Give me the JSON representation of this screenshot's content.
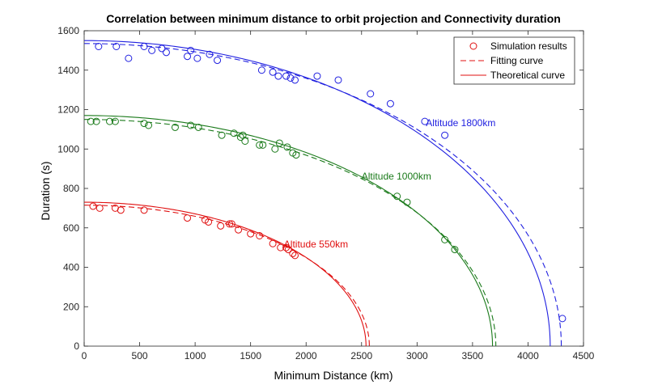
{
  "chart_data": {
    "type": "scatter",
    "title": "Correlation between minimum distance to orbit projection and Connectivity duration",
    "xlabel": "Minimum Distance (km)",
    "ylabel": "Duration (s)",
    "xlim": [
      0,
      4500
    ],
    "ylim": [
      0,
      1600
    ],
    "xticks": [
      0,
      500,
      1000,
      1500,
      2000,
      2500,
      3000,
      3500,
      4000,
      4500
    ],
    "yticks": [
      0,
      200,
      400,
      600,
      800,
      1000,
      1200,
      1400,
      1600
    ],
    "grid": false,
    "legend_position": "top-right",
    "legend": [
      {
        "label": "Simulation results",
        "style": "marker"
      },
      {
        "label": "Fitting curve",
        "style": "dashed"
      },
      {
        "label": "Theoretical curve",
        "style": "solid"
      }
    ],
    "series": [
      {
        "color": "#2020e0",
        "annotation": {
          "text": "Altitude 1800km",
          "x": 3080,
          "y": 1115
        },
        "theoretical": {
          "t0": 1550,
          "d0": 4200
        },
        "fitting": {
          "t0": 1535,
          "d0": 4300
        },
        "points": [
          [
            130,
            1520
          ],
          [
            290,
            1520
          ],
          [
            400,
            1460
          ],
          [
            540,
            1520
          ],
          [
            610,
            1500
          ],
          [
            700,
            1510
          ],
          [
            740,
            1490
          ],
          [
            930,
            1470
          ],
          [
            960,
            1500
          ],
          [
            1020,
            1460
          ],
          [
            1130,
            1480
          ],
          [
            1200,
            1450
          ],
          [
            1600,
            1400
          ],
          [
            1700,
            1390
          ],
          [
            1750,
            1370
          ],
          [
            1820,
            1370
          ],
          [
            1860,
            1360
          ],
          [
            1900,
            1350
          ],
          [
            2100,
            1370
          ],
          [
            2290,
            1350
          ],
          [
            2580,
            1280
          ],
          [
            2760,
            1230
          ],
          [
            3070,
            1140
          ],
          [
            3250,
            1070
          ],
          [
            4310,
            140
          ]
        ]
      },
      {
        "color": "#1a7a1a",
        "annotation": {
          "text": "Altitude 1000km",
          "x": 2500,
          "y": 845
        },
        "theoretical": {
          "t0": 1170,
          "d0": 3680
        },
        "fitting": {
          "t0": 1150,
          "d0": 3710
        },
        "points": [
          [
            60,
            1140
          ],
          [
            110,
            1140
          ],
          [
            230,
            1140
          ],
          [
            280,
            1140
          ],
          [
            540,
            1130
          ],
          [
            580,
            1120
          ],
          [
            820,
            1110
          ],
          [
            960,
            1120
          ],
          [
            1030,
            1110
          ],
          [
            1240,
            1070
          ],
          [
            1350,
            1080
          ],
          [
            1410,
            1060
          ],
          [
            1430,
            1070
          ],
          [
            1450,
            1040
          ],
          [
            1580,
            1020
          ],
          [
            1610,
            1020
          ],
          [
            1720,
            1000
          ],
          [
            1760,
            1030
          ],
          [
            1830,
            1010
          ],
          [
            1880,
            980
          ],
          [
            1910,
            970
          ],
          [
            2820,
            760
          ],
          [
            2910,
            730
          ],
          [
            3250,
            540
          ],
          [
            3340,
            490
          ]
        ]
      },
      {
        "color": "#e01010",
        "annotation": {
          "text": "Altitude 550km",
          "x": 1800,
          "y": 500
        },
        "theoretical": {
          "t0": 730,
          "d0": 2540
        },
        "fitting": {
          "t0": 715,
          "d0": 2570
        },
        "points": [
          [
            80,
            710
          ],
          [
            140,
            700
          ],
          [
            280,
            700
          ],
          [
            330,
            690
          ],
          [
            540,
            690
          ],
          [
            930,
            650
          ],
          [
            1090,
            640
          ],
          [
            1120,
            630
          ],
          [
            1230,
            610
          ],
          [
            1310,
            620
          ],
          [
            1330,
            620
          ],
          [
            1390,
            590
          ],
          [
            1500,
            570
          ],
          [
            1580,
            560
          ],
          [
            1700,
            520
          ],
          [
            1770,
            500
          ],
          [
            1820,
            500
          ],
          [
            1840,
            490
          ],
          [
            1880,
            470
          ],
          [
            1900,
            460
          ]
        ]
      }
    ]
  }
}
